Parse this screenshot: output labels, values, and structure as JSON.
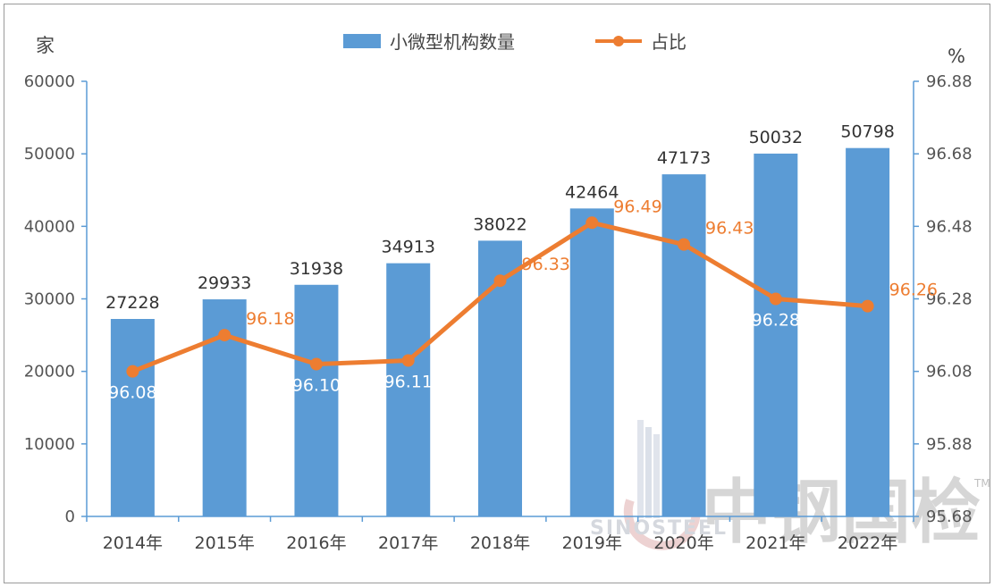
{
  "chart_data": {
    "type": "bar+line",
    "categories": [
      "2014年",
      "2015年",
      "2016年",
      "2017年",
      "2018年",
      "2019年",
      "2020年",
      "2021年",
      "2022年"
    ],
    "series": [
      {
        "name": "小微型机构数量",
        "type": "bar",
        "axis": "left",
        "color": "#5b9bd5",
        "values": [
          27228,
          29933,
          31938,
          34913,
          38022,
          42464,
          47173,
          50032,
          50798
        ],
        "labels": [
          "27228",
          "29933",
          "31938",
          "34913",
          "38022",
          "42464",
          "47173",
          "50032",
          "50798"
        ]
      },
      {
        "name": "占比",
        "type": "line",
        "axis": "right",
        "color": "#ed7d31",
        "values": [
          96.08,
          96.18,
          96.1,
          96.11,
          96.33,
          96.49,
          96.43,
          96.28,
          96.26
        ],
        "labels": [
          "96.08",
          "96.18",
          "96.10",
          "96.11",
          "96.33",
          "96.49",
          "96.43",
          "96.28",
          "96.26"
        ],
        "label_colors": [
          "#ffffff",
          "#ed7d31",
          "#ffffff",
          "#ffffff",
          "#ed7d31",
          "#ed7d31",
          "#ed7d31",
          "#ffffff",
          "#ed7d31"
        ]
      }
    ],
    "y_left": {
      "unit": "家",
      "ylim": [
        0,
        60000
      ],
      "ticks": [
        0,
        10000,
        20000,
        30000,
        40000,
        50000,
        60000
      ],
      "tick_labels": [
        "0",
        "10000",
        "20000",
        "30000",
        "40000",
        "50000",
        "60000"
      ]
    },
    "y_right": {
      "unit": "%",
      "ylim": [
        95.68,
        96.88
      ],
      "ticks": [
        95.68,
        95.88,
        96.08,
        96.28,
        96.48,
        96.68,
        96.88
      ],
      "tick_labels": [
        "95.68",
        "95.88",
        "96.08",
        "96.28",
        "96.48",
        "96.68",
        "96.88"
      ]
    },
    "grid": false,
    "legend": "top-center",
    "axis_color": "#5b9bd5"
  },
  "watermark": {
    "latin": "SINOSTEEL",
    "cjk": "中钢国检",
    "tm": "TM"
  }
}
